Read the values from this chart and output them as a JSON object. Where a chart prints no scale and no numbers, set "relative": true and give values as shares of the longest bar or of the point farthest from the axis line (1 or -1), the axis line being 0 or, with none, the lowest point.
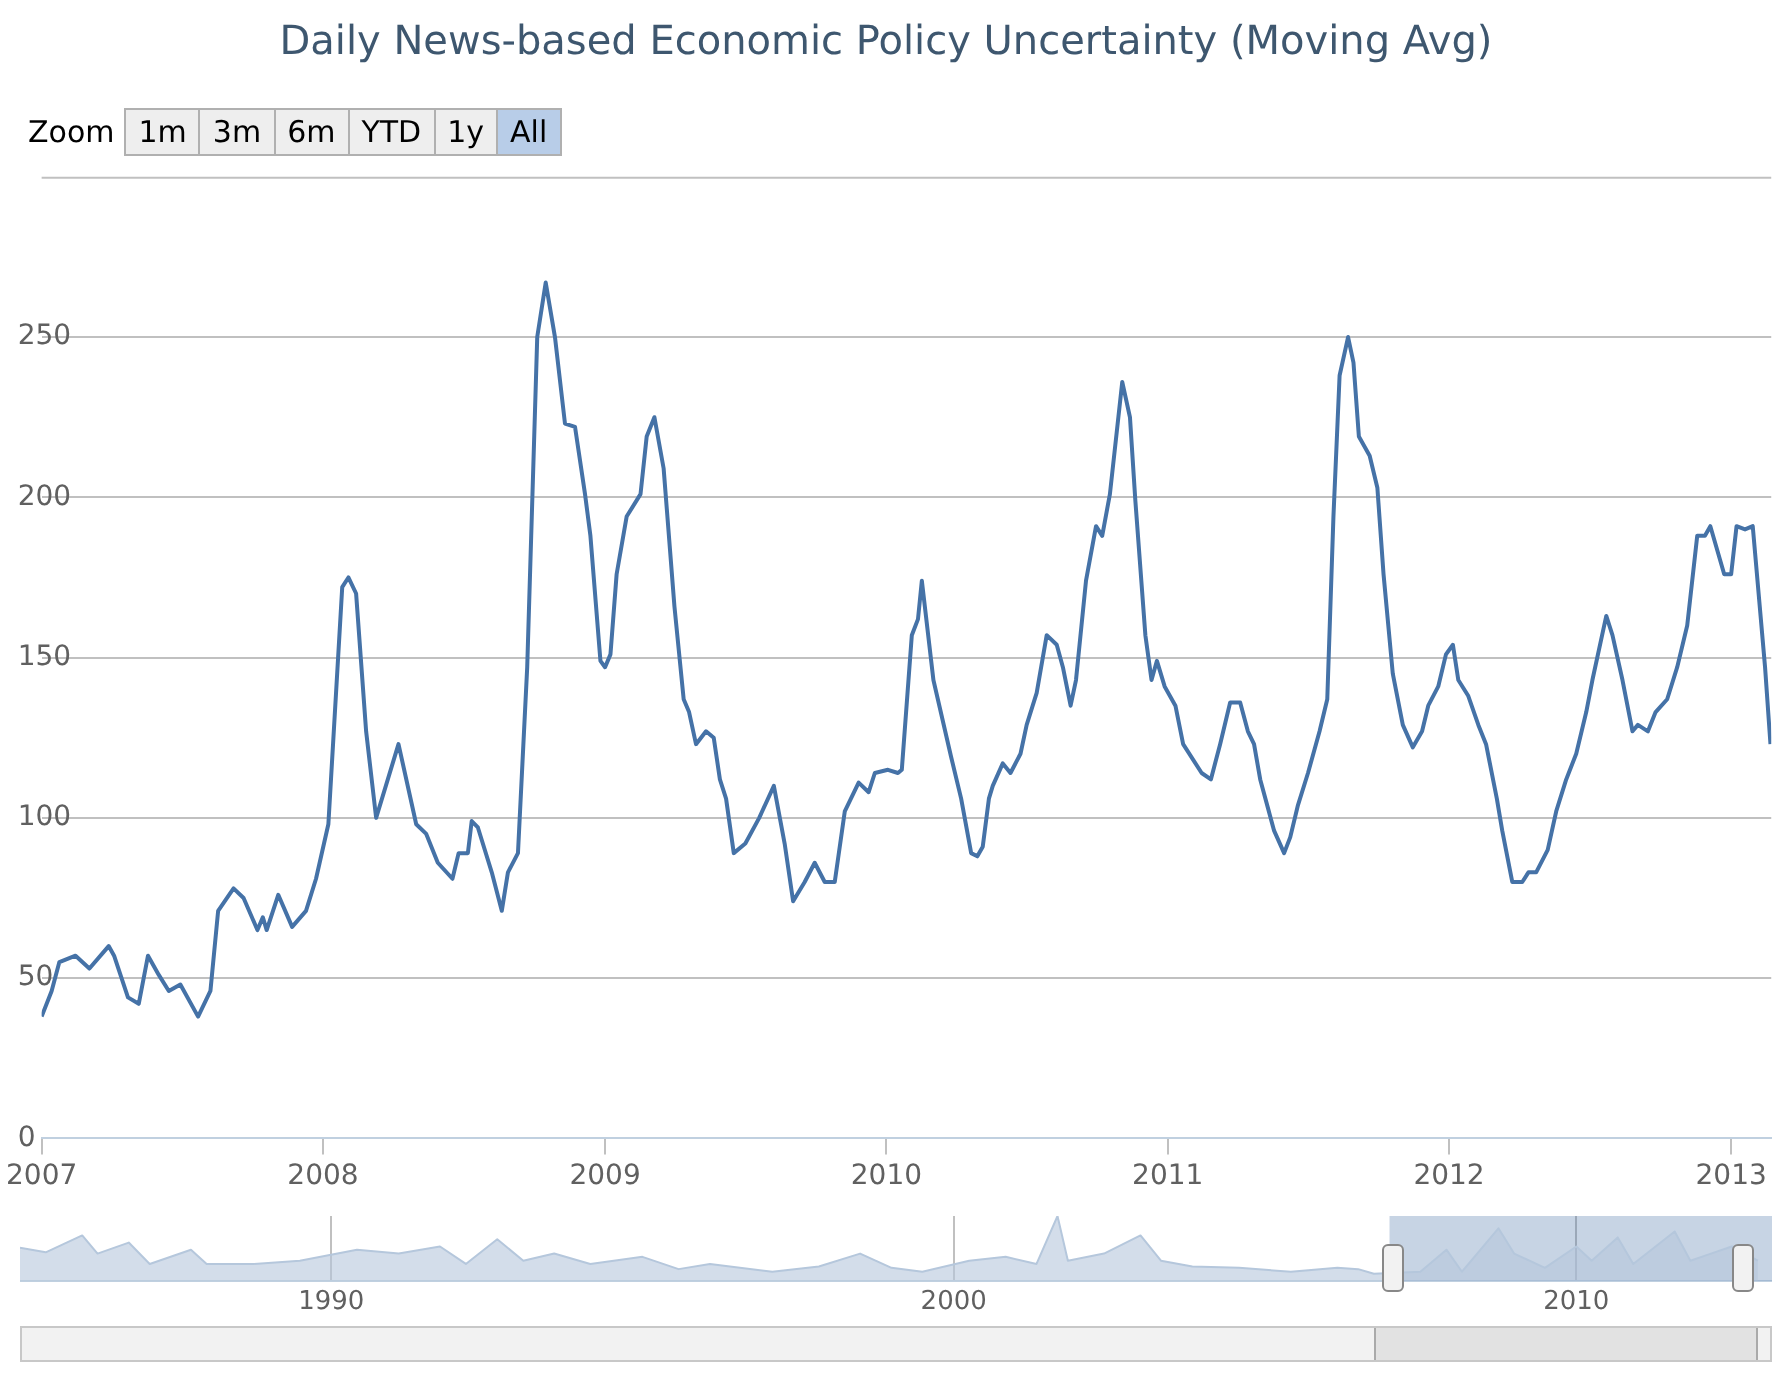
{
  "chart_data": [
    {
      "type": "line",
      "title": "Daily News-based Economic Policy Uncertainty (Moving Avg)",
      "annotations": [
        "Zoom",
        "1m",
        "3m",
        "6m",
        "YTD",
        "1y",
        "All"
      ],
      "x": [
        "2007-01-01",
        "2007-01-14",
        "2007-01-24",
        "2007-02-14",
        "2007-03-04",
        "2007-03-29",
        "2007-04-05",
        "2007-04-23",
        "2007-05-07",
        "2007-05-19",
        "2007-06-02",
        "2007-06-15",
        "2007-06-30",
        "2007-07-23",
        "2007-08-08",
        "2007-08-18",
        "2007-09-07",
        "2007-09-20",
        "2007-10-08",
        "2007-10-15",
        "2007-10-20",
        "2007-11-04",
        "2007-11-22",
        "2007-12-10",
        "2007-12-23",
        "2008-01-08",
        "2008-01-26",
        "2008-02-03",
        "2008-02-13",
        "2008-02-26",
        "2008-03-10",
        "2008-04-08",
        "2008-05-01",
        "2008-05-14",
        "2008-05-29",
        "2008-06-17",
        "2008-06-25",
        "2008-07-07",
        "2008-07-12",
        "2008-07-20",
        "2008-08-07",
        "2008-08-20",
        "2008-08-28",
        "2008-09-10",
        "2008-09-22",
        "2008-10-05",
        "2008-10-16",
        "2008-10-28",
        "2008-11-10",
        "2008-11-23",
        "2008-12-06",
        "2008-12-13",
        "2008-12-26",
        "2009-01-01",
        "2009-01-08",
        "2009-01-16",
        "2009-01-29",
        "2009-02-16",
        "2009-02-24",
        "2009-03-06",
        "2009-03-18",
        "2009-04-01",
        "2009-04-13",
        "2009-04-20",
        "2009-04-29",
        "2009-05-12",
        "2009-05-22",
        "2009-05-30",
        "2009-06-07",
        "2009-06-17",
        "2009-07-02",
        "2009-07-20",
        "2009-08-08",
        "2009-08-22",
        "2009-09-02",
        "2009-09-17",
        "2009-09-30",
        "2009-10-13",
        "2009-10-26",
        "2009-11-08",
        "2009-11-26",
        "2009-12-09",
        "2009-12-17",
        "2010-01-03",
        "2010-01-16",
        "2010-01-21",
        "2010-02-03",
        "2010-02-11",
        "2010-02-16",
        "2010-03-03",
        "2010-03-26",
        "2010-04-08",
        "2010-04-21",
        "2010-04-29",
        "2010-05-06",
        "2010-05-14",
        "2010-05-19",
        "2010-06-01",
        "2010-06-11",
        "2010-06-24",
        "2010-07-02",
        "2010-07-15",
        "2010-07-28",
        "2010-08-10",
        "2010-08-18",
        "2010-08-28",
        "2010-09-04",
        "2010-09-17",
        "2010-09-30",
        "2010-10-08",
        "2010-10-18",
        "2010-11-03",
        "2010-11-13",
        "2010-11-20",
        "2010-12-03",
        "2010-12-11",
        "2010-12-18",
        "2010-12-28",
        "2011-01-11",
        "2011-01-21",
        "2011-02-14",
        "2011-02-26",
        "2011-03-10",
        "2011-03-23",
        "2011-04-05",
        "2011-04-15",
        "2011-04-23",
        "2011-05-01",
        "2011-05-19",
        "2011-06-01",
        "2011-06-09",
        "2011-06-19",
        "2011-07-02",
        "2011-07-17",
        "2011-07-27",
        "2011-08-04",
        "2011-08-12",
        "2011-08-23",
        "2011-08-30",
        "2011-09-06",
        "2011-09-20",
        "2011-09-30",
        "2011-10-08",
        "2011-10-20",
        "2011-11-02",
        "2011-11-15",
        "2011-11-27",
        "2011-12-05",
        "2011-12-18",
        "2011-12-28",
        "2012-01-06",
        "2012-01-13",
        "2012-01-26",
        "2012-02-08",
        "2012-02-18",
        "2012-03-03",
        "2012-03-10",
        "2012-03-23",
        "2012-04-05",
        "2012-04-13",
        "2012-04-23",
        "2012-05-08",
        "2012-05-19",
        "2012-06-01",
        "2012-06-14",
        "2012-06-27",
        "2012-07-05",
        "2012-07-23",
        "2012-07-31",
        "2012-08-13",
        "2012-08-26",
        "2012-09-02",
        "2012-09-15",
        "2012-09-25",
        "2012-10-10",
        "2012-10-23",
        "2012-11-05",
        "2012-11-18",
        "2012-11-28",
        "2012-12-05",
        "2012-12-23",
        "2013-01-01",
        "2013-01-08",
        "2013-01-19",
        "2013-01-29",
        "2013-02-14",
        "2013-02-21"
      ],
      "series": [
        {
          "color": "#4572a7",
          "values": [
            38,
            46,
            55,
            57,
            53,
            60,
            57,
            44,
            42,
            57,
            51,
            46,
            48,
            38,
            46,
            71,
            78,
            75,
            65,
            69,
            65,
            76,
            66,
            71,
            81,
            98,
            172,
            175,
            170,
            127,
            100,
            123,
            98,
            95,
            86,
            81,
            89,
            89,
            99,
            97,
            83,
            71,
            83,
            89,
            147,
            250,
            267,
            250,
            223,
            222,
            201,
            188,
            149,
            147,
            151,
            176,
            194,
            201,
            219,
            225,
            209,
            166,
            137,
            133,
            123,
            127,
            125,
            112,
            106,
            89,
            92,
            100,
            110,
            92,
            74,
            80,
            86,
            80,
            80,
            102,
            111,
            108,
            114,
            115,
            114,
            115,
            157,
            162,
            174,
            143,
            119,
            106,
            89,
            88,
            91,
            106,
            110,
            117,
            114,
            120,
            129,
            139,
            157,
            154,
            147,
            135,
            143,
            174,
            191,
            188,
            201,
            236,
            225,
            199,
            157,
            143,
            149,
            141,
            135,
            123,
            114,
            112,
            123,
            136,
            136,
            127,
            123,
            112,
            96,
            89,
            94,
            104,
            114,
            127,
            137,
            194,
            238,
            250,
            242,
            219,
            213,
            203,
            176,
            145,
            129,
            122,
            127,
            135,
            141,
            151,
            154,
            143,
            138,
            129,
            123,
            106,
            96,
            80,
            80,
            83,
            83,
            90,
            102,
            112,
            120,
            133,
            143,
            163,
            157,
            143,
            127,
            129,
            127,
            133,
            137,
            147,
            160,
            188,
            188,
            191,
            176,
            176,
            191,
            190,
            191,
            147,
            123
          ]
        }
      ],
      "xlim": [
        "2007-01-01",
        "2013-02-22"
      ],
      "xticks": [
        "2007",
        "2008",
        "2009",
        "2010",
        "2011",
        "2012",
        "2013"
      ],
      "ylim": [
        0,
        300
      ],
      "yticks": [
        0,
        50,
        100,
        150,
        200,
        250
      ],
      "grid": "y",
      "legend": false,
      "marker": "none",
      "line_style": "solid"
    },
    {
      "type": "area",
      "relative": true,
      "x": [
        "1985-01",
        "1985-06",
        "1986-01",
        "1986-04",
        "1986-10",
        "1987-02",
        "1987-10",
        "1988-01",
        "1988-10",
        "1989-07",
        "1990-06",
        "1991-02",
        "1991-10",
        "1992-03",
        "1992-09",
        "1993-02",
        "1993-08",
        "1994-03",
        "1995-01",
        "1995-08",
        "1996-02",
        "1997-02",
        "1997-11",
        "1998-07",
        "1999-01",
        "1999-07",
        "2000-04",
        "2000-11",
        "2001-05",
        "2001-09",
        "2001-11",
        "2002-06",
        "2003-01",
        "2003-05",
        "2003-11",
        "2004-08",
        "2005-06",
        "2006-03",
        "2006-07",
        "2006-10",
        "2007-07",
        "2007-12",
        "2008-03",
        "2008-10",
        "2009-01",
        "2009-07",
        "2010-01",
        "2010-04",
        "2010-09",
        "2010-12",
        "2011-08",
        "2011-11",
        "2012-03",
        "2012-07",
        "2012-12"
      ],
      "series": [
        {
          "color": "#b5c7dc",
          "values": [
            0.51,
            0.44,
            0.7,
            0.42,
            0.59,
            0.26,
            0.48,
            0.26,
            0.26,
            0.31,
            0.48,
            0.42,
            0.53,
            0.26,
            0.64,
            0.31,
            0.42,
            0.26,
            0.37,
            0.18,
            0.26,
            0.14,
            0.22,
            0.42,
            0.2,
            0.14,
            0.31,
            0.37,
            0.26,
            1.0,
            0.31,
            0.42,
            0.7,
            0.31,
            0.22,
            0.2,
            0.14,
            0.2,
            0.18,
            0.11,
            0.14,
            0.48,
            0.14,
            0.81,
            0.42,
            0.2,
            0.53,
            0.31,
            0.67,
            0.26,
            0.76,
            0.31,
            0.42,
            0.53,
            0.31
          ]
        }
      ],
      "xlim": [
        "1985-01-01",
        "2013-02-22"
      ],
      "xticks": [
        "1990",
        "2000",
        "2010"
      ],
      "bands": [
        {
          "axis": "x",
          "from": "2007-01-01",
          "to": "2013-02-22",
          "color": "#4572a7"
        }
      ],
      "grid": "x",
      "legend": false,
      "marker": "none"
    }
  ]
}
